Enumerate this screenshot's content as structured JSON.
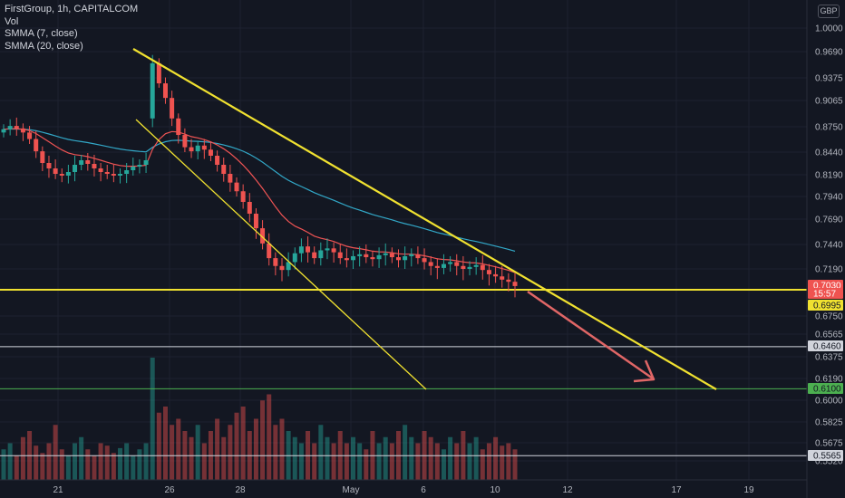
{
  "legend": {
    "symbol": "FirstGroup, 1h, CAPITALCOM",
    "vol": "Vol",
    "smma7": "SMMA (7, close)",
    "smma20": "SMMA (20, close)"
  },
  "currency": "GBP",
  "colors": {
    "background": "#131722",
    "up": "#26a69a",
    "down": "#ef5350",
    "smma7": "#f05454",
    "smma20": "#32a8c8",
    "trendline": "#f0e130",
    "support_white": "#d1d4dc",
    "support_green": "#4caf50",
    "arrow": "#e06666"
  },
  "chart_data": {
    "type": "candlestick",
    "title": "FirstGroup, 1h, CAPITALCOM",
    "y_axis_ticks": [
      "1.0000",
      "0.9690",
      "0.9375",
      "0.9065",
      "0.8750",
      "0.8440",
      "0.8190",
      "0.7940",
      "0.7690",
      "0.7440",
      "0.7190",
      "0.6750",
      "0.6565",
      "0.6375",
      "0.6190",
      "0.6000",
      "0.5825",
      "0.5675",
      "0.5520"
    ],
    "x_axis_ticks": [
      "21",
      "26",
      "28",
      "May",
      "6",
      "10",
      "12",
      "17",
      "19"
    ],
    "ylim": [
      0.552,
      1.0
    ],
    "price_labels": [
      {
        "value": "0.7030",
        "color": "#ef5350",
        "text_color": "#ffffff"
      },
      {
        "value": "15:57",
        "color": "#ef5350",
        "text_color": "#ffffff"
      },
      {
        "value": "0.6995",
        "color": "#f0e130",
        "text_color": "#131722"
      },
      {
        "value": "0.6460",
        "color": "#d1d4dc",
        "text_color": "#131722"
      },
      {
        "value": "0.6100",
        "color": "#4caf50",
        "text_color": "#131722"
      },
      {
        "value": "0.5565",
        "color": "#d1d4dc",
        "text_color": "#131722"
      }
    ],
    "horizontal_levels": [
      {
        "name": "support-yellow",
        "value": 0.6995,
        "color": "#f0e130"
      },
      {
        "name": "support-white-1",
        "value": 0.646,
        "color": "#d1d4dc"
      },
      {
        "name": "support-green",
        "value": 0.61,
        "color": "#4caf50"
      },
      {
        "name": "support-white-2",
        "value": 0.5565,
        "color": "#d1d4dc"
      }
    ],
    "close_series": [
      0.872,
      0.876,
      0.873,
      0.868,
      0.86,
      0.845,
      0.832,
      0.826,
      0.82,
      0.818,
      0.822,
      0.83,
      0.835,
      0.831,
      0.826,
      0.822,
      0.82,
      0.818,
      0.82,
      0.824,
      0.828,
      0.83,
      0.835,
      0.955,
      0.93,
      0.91,
      0.885,
      0.865,
      0.85,
      0.845,
      0.852,
      0.847,
      0.84,
      0.83,
      0.82,
      0.81,
      0.8,
      0.788,
      0.775,
      0.76,
      0.745,
      0.73,
      0.722,
      0.718,
      0.726,
      0.735,
      0.742,
      0.736,
      0.73,
      0.738,
      0.74,
      0.736,
      0.73,
      0.728,
      0.732,
      0.734,
      0.731,
      0.729,
      0.733,
      0.735,
      0.731,
      0.728,
      0.732,
      0.734,
      0.73,
      0.726,
      0.722,
      0.72,
      0.724,
      0.726,
      0.722,
      0.719,
      0.721,
      0.723,
      0.718,
      0.714,
      0.712,
      0.709,
      0.707,
      0.703
    ],
    "volume_series": [
      0.25,
      0.3,
      0.2,
      0.35,
      0.4,
      0.28,
      0.22,
      0.3,
      0.45,
      0.25,
      0.2,
      0.3,
      0.35,
      0.25,
      0.2,
      0.3,
      0.28,
      0.22,
      0.26,
      0.3,
      0.2,
      0.25,
      0.3,
      1.0,
      0.55,
      0.6,
      0.45,
      0.5,
      0.4,
      0.35,
      0.45,
      0.3,
      0.4,
      0.5,
      0.35,
      0.45,
      0.55,
      0.6,
      0.4,
      0.5,
      0.65,
      0.7,
      0.45,
      0.5,
      0.4,
      0.35,
      0.3,
      0.4,
      0.3,
      0.45,
      0.35,
      0.3,
      0.4,
      0.3,
      0.35,
      0.3,
      0.25,
      0.4,
      0.3,
      0.35,
      0.3,
      0.4,
      0.45,
      0.35,
      0.3,
      0.4,
      0.35,
      0.3,
      0.25,
      0.35,
      0.3,
      0.4,
      0.3,
      0.35,
      0.25,
      0.3,
      0.35,
      0.28,
      0.3,
      0.25
    ]
  }
}
